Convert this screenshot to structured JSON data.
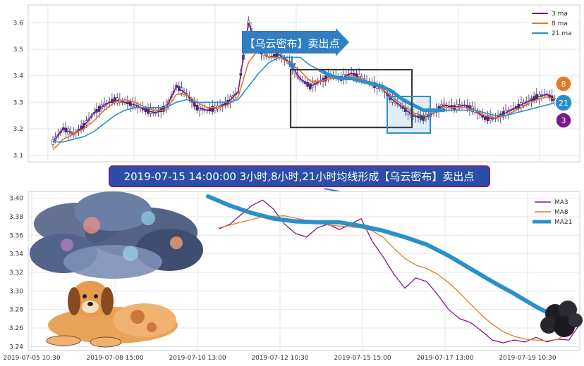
{
  "colors": {
    "ma3": "#7a1a8c",
    "ma8": "#e07b25",
    "ma21": "#2c8fcc",
    "candle": "#3d2f6e",
    "box": "#3a3a3a",
    "banner_bg": "#2f7fc2",
    "callout_bg": "#2a4fa8",
    "grid": "#e6e6e6"
  },
  "top_panel": {
    "arrow_banner": "【乌云密布】卖出点",
    "badges": [
      "8",
      "21",
      "3"
    ]
  },
  "callout": "2019-07-15 14:00:00 3小时,8小时,21小时均线形成【乌云密布】卖出点",
  "chart_data": [
    {
      "type": "line",
      "title": "",
      "ylim": [
        3.08,
        3.66
      ],
      "y_ticks": [
        "3.1",
        "3.2",
        "3.3",
        "3.4",
        "3.5",
        "3.6"
      ],
      "legend_position": "top-right",
      "series": [
        {
          "name": "3 ma",
          "values": [
            3.15,
            3.2,
            3.18,
            3.21,
            3.26,
            3.29,
            3.31,
            3.3,
            3.29,
            3.27,
            3.26,
            3.28,
            3.36,
            3.33,
            3.28,
            3.27,
            3.28,
            3.3,
            3.34,
            3.6,
            3.5,
            3.47,
            3.48,
            3.45,
            3.39,
            3.36,
            3.38,
            3.4,
            3.39,
            3.41,
            3.39,
            3.37,
            3.35,
            3.31,
            3.28,
            3.25,
            3.24,
            3.26,
            3.29,
            3.28,
            3.29,
            3.27,
            3.24,
            3.24,
            3.26,
            3.28,
            3.3,
            3.32,
            3.33,
            3.3
          ]
        },
        {
          "name": "8 ma",
          "values": [
            3.12,
            3.16,
            3.18,
            3.2,
            3.23,
            3.27,
            3.3,
            3.31,
            3.3,
            3.28,
            3.27,
            3.27,
            3.33,
            3.33,
            3.3,
            3.28,
            3.28,
            3.29,
            3.32,
            3.45,
            3.5,
            3.47,
            3.47,
            3.45,
            3.42,
            3.38,
            3.38,
            3.39,
            3.39,
            3.4,
            3.39,
            3.37,
            3.35,
            3.32,
            3.29,
            3.26,
            3.25,
            3.26,
            3.28,
            3.28,
            3.28,
            3.27,
            3.25,
            3.24,
            3.25,
            3.27,
            3.29,
            3.31,
            3.32,
            3.31
          ]
        },
        {
          "name": "21 ma",
          "values": [
            3.15,
            3.15,
            3.16,
            3.17,
            3.19,
            3.22,
            3.25,
            3.27,
            3.28,
            3.28,
            3.28,
            3.28,
            3.3,
            3.31,
            3.3,
            3.3,
            3.3,
            3.3,
            3.31,
            3.36,
            3.41,
            3.45,
            3.47,
            3.47,
            3.47,
            3.44,
            3.42,
            3.4,
            3.39,
            3.39,
            3.38,
            3.37,
            3.36,
            3.34,
            3.31,
            3.29,
            3.27,
            3.27,
            3.27,
            3.27,
            3.27,
            3.27,
            3.26,
            3.25,
            3.25,
            3.26,
            3.27,
            3.28,
            3.29,
            3.3
          ]
        }
      ]
    },
    {
      "type": "line",
      "title": "",
      "ylim": [
        3.238,
        3.405
      ],
      "y_ticks": [
        "3.24",
        "3.26",
        "3.28",
        "3.30",
        "3.32",
        "3.34",
        "3.36",
        "3.38",
        "3.40"
      ],
      "x_ticks": [
        "2019-07-05 10:30",
        "2019-07-08 15:00",
        "2019-07-10 13:00",
        "2019-07-12 10:30",
        "2019-07-15 15:00",
        "2019-07-17 13:00",
        "2019-07-19 10:30"
      ],
      "legend_position": "top-right",
      "series": [
        {
          "name": "MA3",
          "values": [
            [
              2,
              3.367
            ],
            [
              4,
              3.372
            ],
            [
              6,
              3.382
            ],
            [
              8,
              3.392
            ],
            [
              10,
              3.398
            ],
            [
              12,
              3.388
            ],
            [
              14,
              3.372
            ],
            [
              16,
              3.362
            ],
            [
              18,
              3.358
            ],
            [
              20,
              3.368
            ],
            [
              22,
              3.372
            ],
            [
              24,
              3.366
            ],
            [
              26,
              3.372
            ],
            [
              28,
              3.378
            ],
            [
              30,
              3.354
            ],
            [
              32,
              3.337
            ],
            [
              34,
              3.318
            ],
            [
              36,
              3.303
            ],
            [
              38,
              3.314
            ],
            [
              40,
              3.31
            ],
            [
              42,
              3.296
            ],
            [
              44,
              3.28
            ],
            [
              46,
              3.27
            ],
            [
              48,
              3.266
            ],
            [
              50,
              3.257
            ],
            [
              52,
              3.247
            ],
            [
              54,
              3.244
            ],
            [
              56,
              3.247
            ],
            [
              58,
              3.245
            ],
            [
              60,
              3.25
            ],
            [
              62,
              3.245
            ],
            [
              64,
              3.248
            ],
            [
              66,
              3.247
            ],
            [
              68,
              3.264
            ]
          ]
        },
        {
          "name": "MA8",
          "values": [
            [
              2,
              3.368
            ],
            [
              6,
              3.374
            ],
            [
              10,
              3.38
            ],
            [
              14,
              3.381
            ],
            [
              18,
              3.376
            ],
            [
              22,
              3.371
            ],
            [
              26,
              3.369
            ],
            [
              28,
              3.368
            ],
            [
              30,
              3.365
            ],
            [
              32,
              3.358
            ],
            [
              34,
              3.346
            ],
            [
              36,
              3.335
            ],
            [
              38,
              3.328
            ],
            [
              40,
              3.324
            ],
            [
              42,
              3.318
            ],
            [
              44,
              3.309
            ],
            [
              46,
              3.298
            ],
            [
              48,
              3.286
            ],
            [
              50,
              3.274
            ],
            [
              52,
              3.264
            ],
            [
              54,
              3.256
            ],
            [
              56,
              3.251
            ],
            [
              58,
              3.248
            ],
            [
              60,
              3.247
            ],
            [
              62,
              3.246
            ],
            [
              64,
              3.248
            ],
            [
              66,
              3.255
            ],
            [
              68,
              3.265
            ]
          ]
        },
        {
          "name": "MA21",
          "values": [
            [
              0,
              3.402
            ],
            [
              4,
              3.392
            ],
            [
              8,
              3.384
            ],
            [
              12,
              3.378
            ],
            [
              16,
              3.375
            ],
            [
              20,
              3.374
            ],
            [
              24,
              3.374
            ],
            [
              28,
              3.37
            ],
            [
              32,
              3.365
            ],
            [
              36,
              3.358
            ],
            [
              40,
              3.35
            ],
            [
              44,
              3.338
            ],
            [
              48,
              3.324
            ],
            [
              52,
              3.31
            ],
            [
              56,
              3.297
            ],
            [
              60,
              3.283
            ],
            [
              63,
              3.274
            ],
            [
              66,
              3.268
            ],
            [
              68,
              3.268
            ]
          ]
        }
      ]
    }
  ]
}
